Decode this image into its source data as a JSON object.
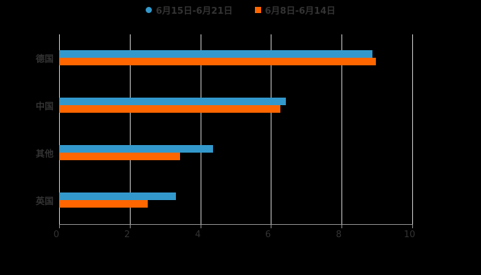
{
  "chart_data": {
    "type": "bar",
    "orientation": "horizontal",
    "title": "",
    "xlabel": "",
    "ylabel": "",
    "categories": [
      "德国",
      "中国",
      "其他",
      "英国"
    ],
    "series": [
      {
        "name": "6月15日-6月21日",
        "color": "#3399cc",
        "values": [
          8.87,
          6.42,
          4.36,
          3.31
        ]
      },
      {
        "name": "6月8日-6月14日",
        "color": "#ff6600",
        "values": [
          8.97,
          6.26,
          3.42,
          2.51
        ]
      }
    ],
    "xlim": [
      0,
      10
    ],
    "xticks": [
      "0",
      "2",
      "4",
      "6",
      "8",
      "10"
    ],
    "grid": true,
    "legend_position": "top"
  },
  "legend": {
    "items": [
      {
        "label": "6月15日-6月21日",
        "color": "#3399cc",
        "marker": "circle"
      },
      {
        "label": "6月8日-6月14日",
        "color": "#ff6600",
        "marker": "square"
      }
    ]
  }
}
